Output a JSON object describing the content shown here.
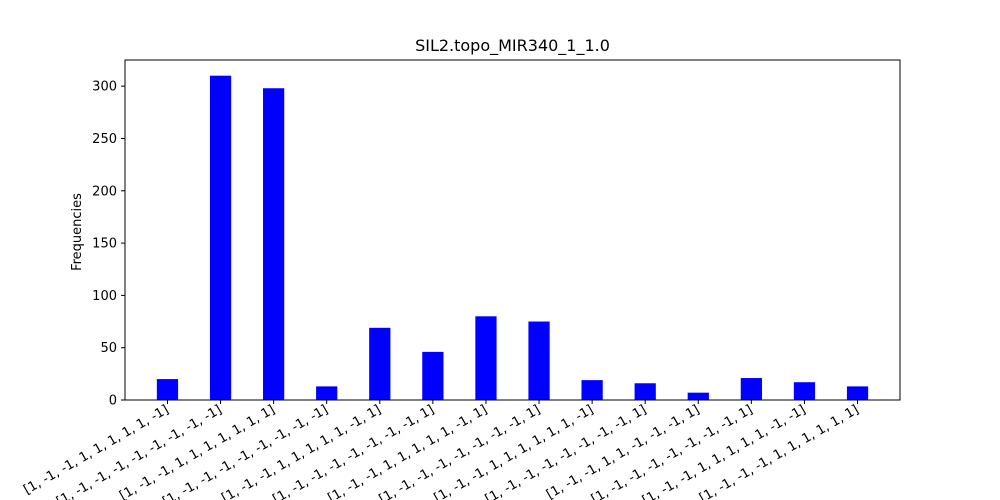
{
  "chart_data": {
    "type": "bar",
    "title": "SIL2.topo_MIR340_1_1.0",
    "xlabel": "",
    "ylabel": "Frequencies",
    "categories": [
      "[1, -1, -1, 1, 1, 1, 1, 1, -1]",
      "[1, -1, -1, -1, -1, -1, -1, -1, -1]",
      "[1, -1, -1, 1, 1, 1, 1, 1, 1, 1]",
      "[1, -1, -1, -1, -1, -1, -1, -1, -1]",
      "[1, -1, -1, 1, 1, 1, 1, 1, -1, 1]",
      "[1, -1, -1, -1, -1, -1, -1, -1, 1]",
      "[1, -1, -1, 1, 1, 1, 1, 1, -1, 1]",
      "[1, -1, -1, -1, -1, -1, -1, -1, 1]",
      "[1, -1, -1, 1, 1, 1, 1, 1, 1, -1]",
      "[1, -1, -1, -1, -1, -1, -1, -1, 1]",
      "[1, -1, -1, 1, 1, -1, -1, -1, 1]",
      "[1, -1, -1, -1, -1, -1, -1, -1, 1]",
      "[1, -1, -1, 1, 1, 1, 1, 1, -1, -1]",
      "[1, -1, -1, -1, 1, 1, 1, 1, 1, 1]"
    ],
    "values": [
      20,
      310,
      298,
      13,
      69,
      46,
      80,
      75,
      19,
      16,
      7,
      21,
      17,
      13
    ],
    "yticks": [
      0,
      50,
      100,
      150,
      200,
      250,
      300
    ],
    "ylim": [
      0,
      325
    ],
    "grid": false,
    "bar_color": "#0000ff"
  }
}
